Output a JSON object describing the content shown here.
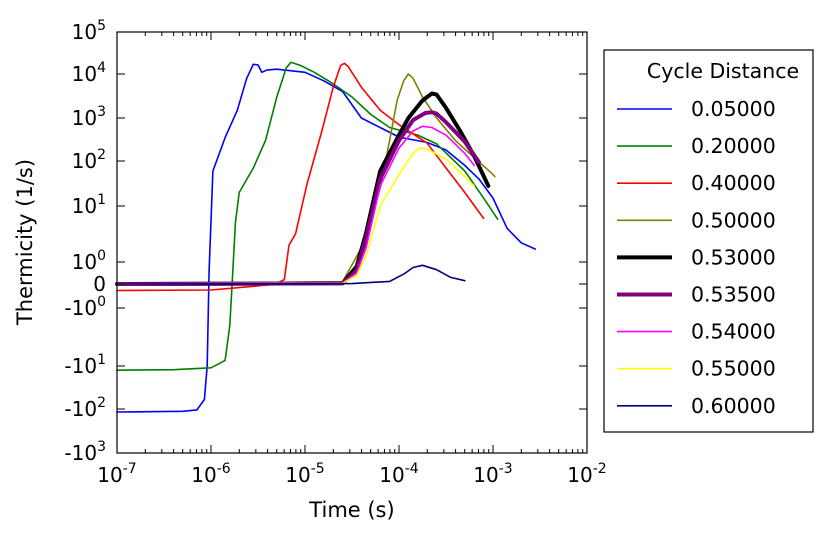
{
  "chart_data": {
    "type": "line",
    "title": "",
    "xlabel": "Time (s)",
    "ylabel": "Thermicity (1/s)",
    "xscale": "log",
    "yscale": "symlog",
    "xlim": [
      1e-07,
      0.01
    ],
    "ylim": [
      -1000,
      100000
    ],
    "x_ticks": [
      {
        "base": "10",
        "exp": "-7"
      },
      {
        "base": "10",
        "exp": "-6"
      },
      {
        "base": "10",
        "exp": "-5"
      },
      {
        "base": "10",
        "exp": "-4"
      },
      {
        "base": "10",
        "exp": "-3"
      },
      {
        "base": "10",
        "exp": "-2"
      }
    ],
    "y_ticks": [
      {
        "value": -1000,
        "base": "-10",
        "exp": "3"
      },
      {
        "value": -100,
        "base": "-10",
        "exp": "2"
      },
      {
        "value": -10,
        "base": "-10",
        "exp": "1"
      },
      {
        "value": -1,
        "base": "-10",
        "exp": "0"
      },
      {
        "value": 0,
        "base": "0",
        "exp": ""
      },
      {
        "value": 1,
        "base": "10",
        "exp": "0"
      },
      {
        "value": 10,
        "base": "10",
        "exp": "1"
      },
      {
        "value": 100,
        "base": "10",
        "exp": "2"
      },
      {
        "value": 1000,
        "base": "10",
        "exp": "3"
      },
      {
        "value": 10000,
        "base": "10",
        "exp": "4"
      },
      {
        "value": 100000,
        "base": "10",
        "exp": "5"
      }
    ],
    "legend": {
      "title": "Cycle Distance",
      "position": "outside-right"
    },
    "series": [
      {
        "name": "0.05000",
        "color": "#0000ff",
        "width": 1.6,
        "points": [
          [
            -7,
            -117
          ],
          [
            -6.3,
            -113
          ],
          [
            -6.15,
            -105
          ],
          [
            -6.07,
            -60
          ],
          [
            -6.04,
            -10
          ],
          [
            -6.02,
            0.6
          ],
          [
            -5.98,
            60
          ],
          [
            -5.85,
            350
          ],
          [
            -5.72,
            1500
          ],
          [
            -5.62,
            8000
          ],
          [
            -5.55,
            17000
          ],
          [
            -5.5,
            16500
          ],
          [
            -5.46,
            11000
          ],
          [
            -5.4,
            12500
          ],
          [
            -5.3,
            13000
          ],
          [
            -5.0,
            11000
          ],
          [
            -4.8,
            7000
          ],
          [
            -4.6,
            4000
          ],
          [
            -4.4,
            1000
          ],
          [
            -4.0,
            360
          ],
          [
            -3.7,
            270
          ],
          [
            -3.5,
            180
          ],
          [
            -3.3,
            80
          ],
          [
            -3.15,
            40
          ],
          [
            -3.0,
            15
          ],
          [
            -2.85,
            4
          ],
          [
            -2.7,
            2.2
          ],
          [
            -2.55,
            1.7
          ]
        ]
      },
      {
        "name": "0.20000",
        "color": "#008000",
        "width": 1.6,
        "points": [
          [
            -7,
            -12.5
          ],
          [
            -6.4,
            -12.2
          ],
          [
            -6.0,
            -11
          ],
          [
            -5.85,
            -8
          ],
          [
            -5.8,
            -2
          ],
          [
            -5.77,
            0.4
          ],
          [
            -5.74,
            5
          ],
          [
            -5.7,
            20
          ],
          [
            -5.55,
            70
          ],
          [
            -5.42,
            300
          ],
          [
            -5.3,
            3000
          ],
          [
            -5.2,
            14000
          ],
          [
            -5.15,
            19000
          ],
          [
            -5.05,
            16000
          ],
          [
            -4.9,
            11000
          ],
          [
            -4.7,
            6000
          ],
          [
            -4.5,
            3000
          ],
          [
            -4.3,
            1200
          ],
          [
            -4.1,
            600
          ],
          [
            -3.8,
            400
          ],
          [
            -3.6,
            250
          ],
          [
            -3.3,
            60
          ],
          [
            -3.1,
            15
          ],
          [
            -2.95,
            5.8
          ]
        ]
      },
      {
        "name": "0.40000",
        "color": "#ff0000",
        "width": 1.6,
        "points": [
          [
            -7,
            -0.27
          ],
          [
            -6.0,
            -0.25
          ],
          [
            -5.7,
            -0.15
          ],
          [
            -5.4,
            -0.04
          ],
          [
            -5.3,
            0.03
          ],
          [
            -5.22,
            0.2
          ],
          [
            -5.17,
            2
          ],
          [
            -5.1,
            3.2
          ],
          [
            -4.98,
            30
          ],
          [
            -4.82,
            500
          ],
          [
            -4.7,
            5000
          ],
          [
            -4.62,
            16000
          ],
          [
            -4.58,
            18000
          ],
          [
            -4.54,
            15000
          ],
          [
            -4.4,
            5000
          ],
          [
            -4.2,
            1500
          ],
          [
            -4.0,
            700
          ],
          [
            -3.7,
            260
          ],
          [
            -3.5,
            70
          ],
          [
            -3.3,
            20
          ],
          [
            -3.1,
            6
          ]
        ]
      },
      {
        "name": "0.50000",
        "color": "#808000",
        "width": 1.6,
        "points": [
          [
            -7,
            0
          ],
          [
            -4.6,
            0.1
          ],
          [
            -4.4,
            1.8
          ],
          [
            -4.3,
            6
          ],
          [
            -4.2,
            25
          ],
          [
            -4.1,
            300
          ],
          [
            -4.02,
            2500
          ],
          [
            -3.95,
            7000
          ],
          [
            -3.9,
            10000
          ],
          [
            -3.85,
            8000
          ],
          [
            -3.75,
            3000
          ],
          [
            -3.6,
            1000
          ],
          [
            -3.4,
            300
          ],
          [
            -3.2,
            120
          ],
          [
            -3.02,
            55
          ],
          [
            -2.98,
            45
          ]
        ]
      },
      {
        "name": "0.53000",
        "color": "#000000",
        "width": 4,
        "points": [
          [
            -7,
            0
          ],
          [
            -4.6,
            0.03
          ],
          [
            -4.45,
            0.8
          ],
          [
            -4.35,
            3.3
          ],
          [
            -4.2,
            60
          ],
          [
            -4.0,
            400
          ],
          [
            -3.9,
            1000
          ],
          [
            -3.75,
            2500
          ],
          [
            -3.65,
            3600
          ],
          [
            -3.6,
            3400
          ],
          [
            -3.5,
            1700
          ],
          [
            -3.35,
            500
          ],
          [
            -3.2,
            130
          ],
          [
            -3.05,
            28
          ]
        ]
      },
      {
        "name": "0.53500",
        "color": "#800080",
        "width": 4,
        "points": [
          [
            -7,
            0
          ],
          [
            -4.6,
            0.03
          ],
          [
            -4.45,
            0.6
          ],
          [
            -4.35,
            2.7
          ],
          [
            -4.2,
            40
          ],
          [
            -4.0,
            300
          ],
          [
            -3.85,
            900
          ],
          [
            -3.72,
            1300
          ],
          [
            -3.65,
            1350
          ],
          [
            -3.6,
            1250
          ],
          [
            -3.5,
            800
          ],
          [
            -3.3,
            280
          ],
          [
            -3.15,
            95
          ]
        ]
      },
      {
        "name": "0.54000",
        "color": "#ff00ff",
        "width": 1.6,
        "points": [
          [
            -7,
            0
          ],
          [
            -4.6,
            0.03
          ],
          [
            -4.45,
            0.5
          ],
          [
            -4.35,
            1.8
          ],
          [
            -4.2,
            28
          ],
          [
            -4.0,
            200
          ],
          [
            -3.85,
            500
          ],
          [
            -3.75,
            640
          ],
          [
            -3.65,
            600
          ],
          [
            -3.5,
            400
          ],
          [
            -3.3,
            150
          ],
          [
            -3.2,
            80
          ]
        ]
      },
      {
        "name": "0.55000",
        "color": "#ffff00",
        "width": 1.6,
        "points": [
          [
            -7,
            0
          ],
          [
            -4.6,
            0.03
          ],
          [
            -4.45,
            0.4
          ],
          [
            -4.35,
            1.3
          ],
          [
            -4.2,
            10
          ],
          [
            -4.0,
            50
          ],
          [
            -3.85,
            150
          ],
          [
            -3.78,
            200
          ],
          [
            -3.7,
            190
          ],
          [
            -3.5,
            110
          ],
          [
            -3.3,
            45
          ],
          [
            -3.2,
            28
          ]
        ]
      },
      {
        "name": "0.60000",
        "color": "#000080",
        "width": 1.6,
        "points": [
          [
            -7,
            0
          ],
          [
            -4.5,
            0.02
          ],
          [
            -4.1,
            0.12
          ],
          [
            -3.95,
            0.45
          ],
          [
            -3.85,
            0.75
          ],
          [
            -3.75,
            0.85
          ],
          [
            -3.6,
            0.65
          ],
          [
            -3.45,
            0.3
          ],
          [
            -3.3,
            0.15
          ]
        ]
      }
    ]
  }
}
